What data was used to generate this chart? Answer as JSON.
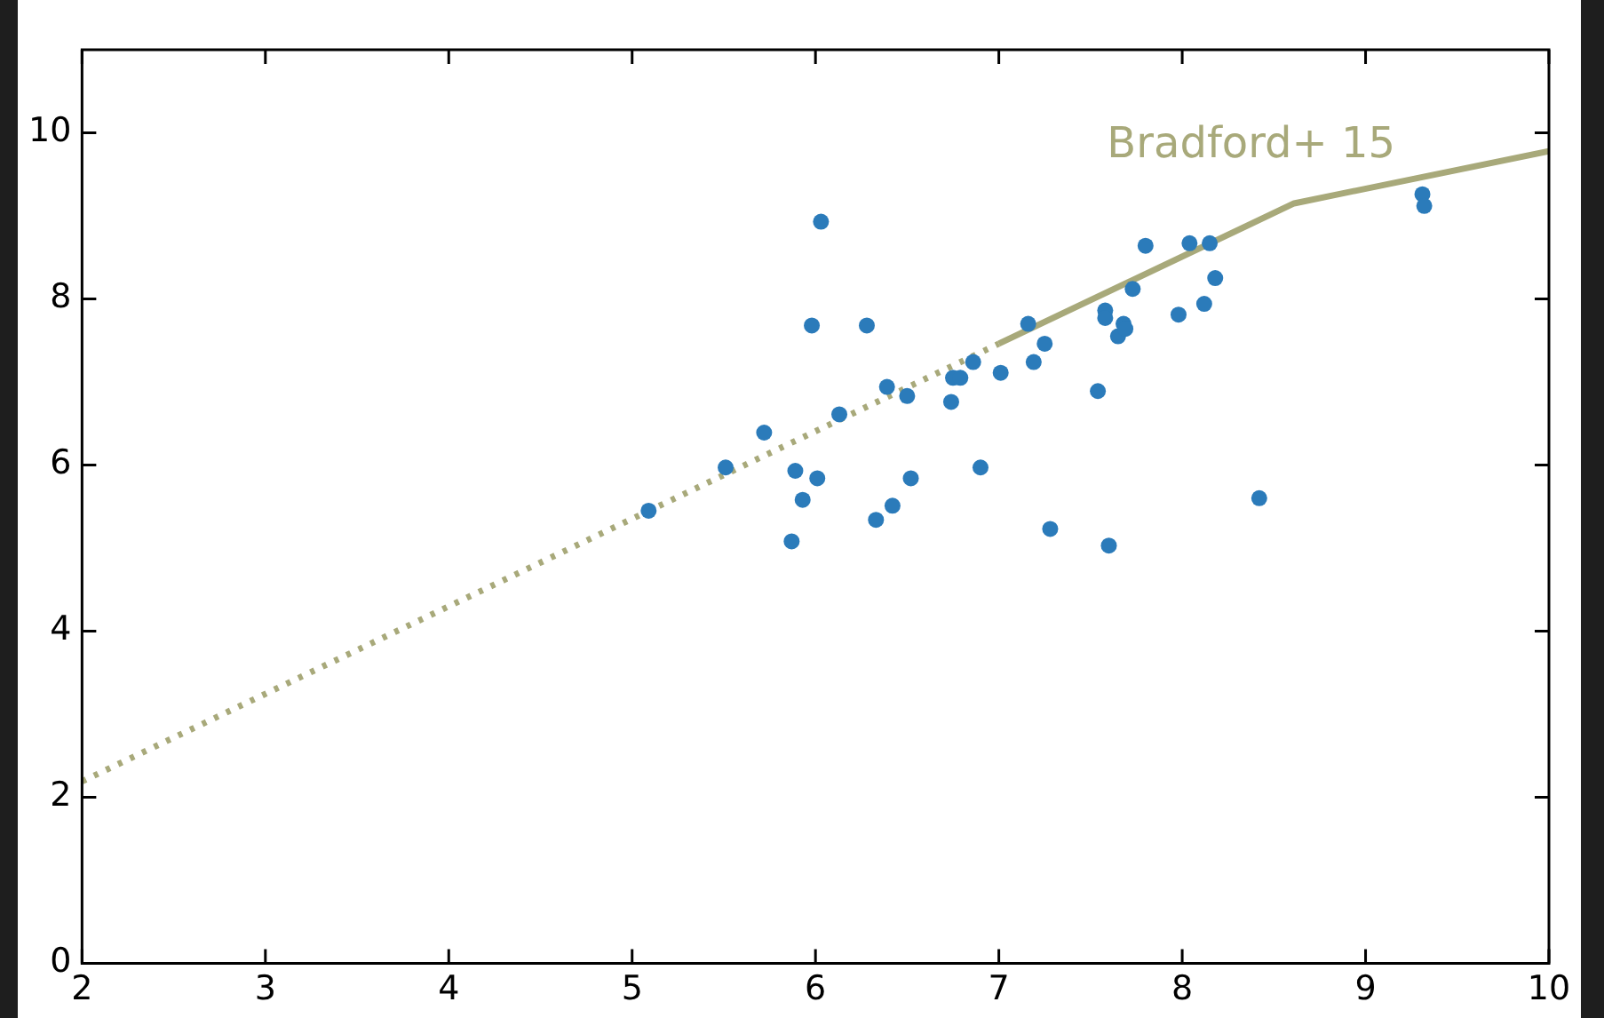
{
  "chart_data": {
    "type": "scatter",
    "xlim": [
      2,
      10
    ],
    "ylim": [
      0,
      11
    ],
    "xticks": [
      2,
      3,
      4,
      5,
      6,
      7,
      8,
      9,
      10
    ],
    "yticks": [
      0,
      2,
      4,
      6,
      8,
      10
    ],
    "series": [
      {
        "color": "#2b7bba",
        "marker": "circle",
        "x": [
          5.09,
          5.51,
          5.72,
          5.89,
          5.87,
          5.93,
          5.98,
          6.01,
          6.03,
          6.13,
          6.28,
          6.33,
          6.39,
          6.42,
          6.5,
          6.52,
          6.74,
          6.75,
          6.79,
          6.86,
          6.9,
          7.01,
          7.16,
          7.19,
          7.25,
          7.28,
          7.54,
          7.58,
          7.58,
          7.6,
          7.65,
          7.68,
          7.69,
          7.73,
          7.8,
          7.98,
          8.04,
          8.12,
          8.15,
          8.18,
          8.42,
          9.31,
          9.32
        ],
        "values": [
          5.45,
          5.97,
          6.39,
          5.93,
          5.08,
          5.58,
          7.68,
          5.84,
          8.93,
          6.61,
          7.68,
          5.34,
          6.94,
          5.51,
          6.83,
          5.84,
          6.76,
          7.05,
          7.05,
          7.24,
          5.97,
          7.11,
          7.7,
          7.24,
          7.46,
          5.23,
          6.89,
          7.86,
          7.77,
          5.03,
          7.55,
          7.7,
          7.64,
          8.12,
          8.64,
          7.81,
          8.67,
          7.94,
          8.67,
          8.25,
          5.6,
          9.26,
          9.12
        ]
      },
      {
        "type": "line",
        "color": "#a8a97a",
        "marker": "none",
        "line_style": "dotted",
        "x": [
          2,
          7
        ],
        "values": [
          2.19,
          7.46
        ]
      },
      {
        "type": "line",
        "color": "#a8a97a",
        "marker": "none",
        "line_style": "solid",
        "x": [
          7,
          8.61,
          10
        ],
        "values": [
          7.46,
          9.15,
          9.78
        ]
      }
    ],
    "annotations": [
      "Bradford+ 15"
    ]
  }
}
